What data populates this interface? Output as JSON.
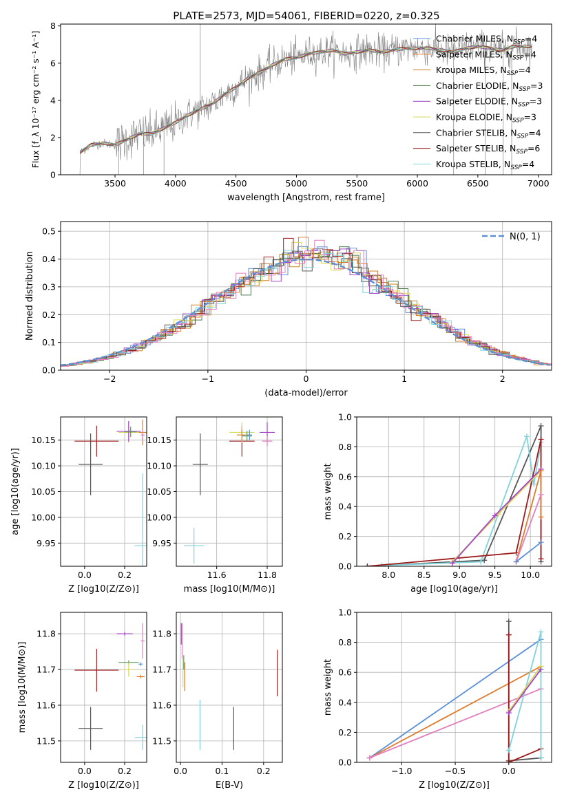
{
  "figure_title": "PLATE=2573, MJD=54061, FIBERID=0220, z=0.325",
  "colors": {
    "Chabrier MILES": "#5b8fd6",
    "Salpeter MILES": "#e07b2c",
    "Kroupa MILES": "#c9832a",
    "Chabrier ELODIE": "#4e7a4e",
    "Salpeter ELODIE": "#a442c7",
    "Kroupa ELODIE": "#d9d95a",
    "Chabrier STELIB": "#555555",
    "Salpeter STELIB": "#a01c1c",
    "Kroupa STELIB": "#7fd3db",
    "Pink": "#e27fbf",
    "Green": "#5a9a5a",
    "Orange": "#e07b2c",
    "Blue": "#5b8fd6",
    "Data": "#808080",
    "Normal": "#5b8fd6"
  },
  "chart_data": [
    {
      "id": "spectrum",
      "type": "line",
      "title": "PLATE=2573, MJD=54061, FIBERID=0220, z=0.325",
      "xlabel": "wavelength [Angstrom, rest frame]",
      "ylabel": "Flux [f_λ 10^-17 erg cm^-2 s^-1 A^-1]",
      "xlim": [
        3050,
        7110
      ],
      "ylim": [
        0,
        8.1
      ],
      "xticks": [
        3500,
        4000,
        4500,
        5000,
        5500,
        6000,
        6500,
        7000
      ],
      "yticks": [
        0,
        2,
        4,
        6,
        8
      ],
      "grid": false,
      "legend_position": "right",
      "legend": [
        {
          "name": "Chabrier MILES",
          "nssp": "4"
        },
        {
          "name": "Salpeter MILES",
          "nssp": "4"
        },
        {
          "name": "Kroupa MILES",
          "nssp": "4"
        },
        {
          "name": "Chabrier ELODIE",
          "nssp": "3"
        },
        {
          "name": "Salpeter ELODIE",
          "nssp": "3"
        },
        {
          "name": "Kroupa ELODIE",
          "nssp": "3"
        },
        {
          "name": "Chabrier STELIB",
          "nssp": "4"
        },
        {
          "name": "Salpeter STELIB",
          "nssp": "6"
        },
        {
          "name": "Kroupa STELIB",
          "nssp": "4"
        }
      ],
      "continuum": [
        [
          3210,
          1.2
        ],
        [
          3300,
          1.6
        ],
        [
          3400,
          1.7
        ],
        [
          3500,
          1.6
        ],
        [
          3600,
          1.9
        ],
        [
          3700,
          2.2
        ],
        [
          3800,
          2.2
        ],
        [
          3900,
          2.5
        ],
        [
          4000,
          2.8
        ],
        [
          4100,
          3.2
        ],
        [
          4200,
          3.5
        ],
        [
          4300,
          3.8
        ],
        [
          4400,
          4.3
        ],
        [
          4500,
          4.7
        ],
        [
          4600,
          5.2
        ],
        [
          4700,
          5.5
        ],
        [
          4800,
          5.9
        ],
        [
          4900,
          6.2
        ],
        [
          5000,
          6.3
        ],
        [
          5100,
          6.5
        ],
        [
          5200,
          6.6
        ],
        [
          5300,
          6.7
        ],
        [
          5400,
          6.5
        ],
        [
          5500,
          6.6
        ],
        [
          5600,
          6.7
        ],
        [
          5700,
          6.6
        ],
        [
          5800,
          6.7
        ],
        [
          5900,
          6.8
        ],
        [
          6000,
          6.8
        ],
        [
          6100,
          6.8
        ],
        [
          6200,
          6.7
        ],
        [
          6300,
          6.6
        ],
        [
          6400,
          6.8
        ],
        [
          6500,
          6.9
        ],
        [
          6600,
          6.8
        ],
        [
          6700,
          6.7
        ],
        [
          6800,
          6.9
        ],
        [
          6900,
          6.9
        ],
        [
          6950,
          6.9
        ]
      ]
    },
    {
      "id": "residuals",
      "type": "line",
      "xlabel": "(data-model)/error",
      "ylabel": "Normed distribution",
      "xlim": [
        -2.5,
        2.5
      ],
      "ylim": [
        0,
        0.535
      ],
      "xticks": [
        -2,
        -1,
        0,
        1,
        2
      ],
      "yticks": [
        0.0,
        0.1,
        0.2,
        0.3,
        0.4,
        0.5
      ],
      "grid": true,
      "legend_position": "top-right",
      "normal_label": "N(0, 1)"
    },
    {
      "id": "age_vs_Z",
      "type": "scatter",
      "xlabel": "Z [log10(Z/Z⊙)]",
      "ylabel": "age [log10(age/yr)]",
      "xlim": [
        -0.12,
        0.31
      ],
      "ylim": [
        9.905,
        10.195
      ],
      "xticks": [
        0.0,
        0.2
      ],
      "yticks": [
        9.95,
        10.0,
        10.05,
        10.1,
        10.15
      ],
      "grid": true,
      "points": [
        {
          "c": "Salpeter STELIB",
          "x": 0.06,
          "y": 10.148,
          "dx": 0.11,
          "dy": 0.03
        },
        {
          "c": "Chabrier STELIB",
          "x": 0.03,
          "y": 10.103,
          "dx": 0.06,
          "dy": 0.06
        },
        {
          "c": "Kroupa STELIB",
          "x": 0.29,
          "y": 9.945,
          "dx": 0.04,
          "dy": 0.14
        },
        {
          "c": "Kroupa ELODIE",
          "x": 0.22,
          "y": 10.165,
          "dx": 0.05,
          "dy": 0.02
        },
        {
          "c": "Salpeter ELODIE",
          "x": 0.22,
          "y": 10.167,
          "dx": 0.06,
          "dy": 0.02
        },
        {
          "c": "Salpeter MILES",
          "x": 0.29,
          "y": 10.165,
          "dx": 0.02,
          "dy": 0.025
        },
        {
          "c": "Pink",
          "x": 0.29,
          "y": 10.16,
          "dx": 0.01,
          "dy": 0.01
        },
        {
          "c": "Green",
          "x": 0.23,
          "y": 10.166,
          "dx": 0.03,
          "dy": 0.01
        }
      ]
    },
    {
      "id": "age_vs_mass",
      "type": "scatter",
      "xlabel": "mass [log10(M/M⊙)]",
      "ylabel": "",
      "xlim": [
        11.44,
        11.86
      ],
      "ylim": [
        9.905,
        10.195
      ],
      "xticks": [
        11.6,
        11.8
      ],
      "yticks": [
        9.95,
        10.0,
        10.05,
        10.1,
        10.15
      ],
      "grid": true,
      "points": [
        {
          "c": "Chabrier STELIB",
          "x": 11.535,
          "y": 10.103,
          "dx": 0.03,
          "dy": 0.06
        },
        {
          "c": "Kroupa STELIB",
          "x": 11.51,
          "y": 9.945,
          "dx": 0.04,
          "dy": 0.035
        },
        {
          "c": "Salpeter STELIB",
          "x": 11.7,
          "y": 10.148,
          "dx": 0.05,
          "dy": 0.03
        },
        {
          "c": "Kroupa ELODIE",
          "x": 11.7,
          "y": 10.165,
          "dx": 0.05,
          "dy": 0.02
        },
        {
          "c": "Salpeter ELODIE",
          "x": 11.8,
          "y": 10.165,
          "dx": 0.03,
          "dy": 0.02
        },
        {
          "c": "Pink",
          "x": 11.8,
          "y": 10.148,
          "dx": 0.02,
          "dy": 0.01
        },
        {
          "c": "Green",
          "x": 11.72,
          "y": 10.158,
          "dx": 0.02,
          "dy": 0.01
        },
        {
          "c": "Salpeter MILES",
          "x": 11.7,
          "y": 10.16,
          "dx": 0.02,
          "dy": 0.01
        },
        {
          "c": "Chabrier MILES",
          "x": 11.73,
          "y": 10.16,
          "dx": 0.01,
          "dy": 0.01
        }
      ]
    },
    {
      "id": "mass_vs_Z",
      "type": "scatter",
      "xlabel": "Z [log10(Z/Z⊙)]",
      "ylabel": "mass [log10(M/M⊙)]",
      "xlim": [
        -0.12,
        0.31
      ],
      "ylim": [
        11.44,
        11.86
      ],
      "xticks": [
        0.0,
        0.2
      ],
      "yticks": [
        11.5,
        11.6,
        11.7,
        11.8
      ],
      "grid": true,
      "points": [
        {
          "c": "Salpeter STELIB",
          "x": 0.06,
          "y": 11.698,
          "dx": 0.11,
          "dy": 0.06
        },
        {
          "c": "Chabrier STELIB",
          "x": 0.03,
          "y": 11.535,
          "dx": 0.06,
          "dy": 0.06
        },
        {
          "c": "Kroupa STELIB",
          "x": 0.29,
          "y": 11.51,
          "dx": 0.04,
          "dy": 0.035
        },
        {
          "c": "Salpeter ELODIE",
          "x": 0.2,
          "y": 11.8,
          "dx": 0.04,
          "dy": 0.005
        },
        {
          "c": "Pink",
          "x": 0.29,
          "y": 11.78,
          "dx": 0.01,
          "dy": 0.05
        },
        {
          "c": "Green",
          "x": 0.22,
          "y": 11.72,
          "dx": 0.05,
          "dy": 0.005
        },
        {
          "c": "Kroupa ELODIE",
          "x": 0.22,
          "y": 11.7,
          "dx": 0.03,
          "dy": 0.02
        },
        {
          "c": "Salpeter MILES",
          "x": 0.28,
          "y": 11.68,
          "dx": 0.02,
          "dy": 0.005
        },
        {
          "c": "Chabrier MILES",
          "x": 0.28,
          "y": 11.715,
          "dx": 0.01,
          "dy": 0.005
        }
      ]
    },
    {
      "id": "mass_vs_EBV",
      "type": "scatter",
      "xlabel": "E(B-V)",
      "ylabel": "",
      "xlim": [
        -0.01,
        0.245
      ],
      "ylim": [
        11.44,
        11.86
      ],
      "xticks": [
        0.0,
        0.1,
        0.2
      ],
      "yticks": [
        11.5,
        11.6,
        11.7,
        11.8
      ],
      "grid": true,
      "points": [
        {
          "c": "Salpeter STELIB",
          "x": 0.233,
          "y": 11.69,
          "dx": 0.0,
          "dy": 0.065
        },
        {
          "c": "Chabrier STELIB",
          "x": 0.128,
          "y": 11.535,
          "dx": 0.0,
          "dy": 0.06
        },
        {
          "c": "Kroupa STELIB",
          "x": 0.047,
          "y": 11.545,
          "dx": 0.0,
          "dy": 0.07
        },
        {
          "c": "Pink",
          "x": 0.004,
          "y": 11.78,
          "dx": 0.0,
          "dy": 0.05
        },
        {
          "c": "Salpeter ELODIE",
          "x": 0.002,
          "y": 11.8,
          "dx": 0.0,
          "dy": 0.03
        },
        {
          "c": "Kroupa ELODIE",
          "x": 0.006,
          "y": 11.69,
          "dx": 0.0,
          "dy": 0.04
        },
        {
          "c": "Salpeter MILES",
          "x": 0.01,
          "y": 11.68,
          "dx": 0.0,
          "dy": 0.04
        },
        {
          "c": "Green",
          "x": 0.008,
          "y": 11.72,
          "dx": 0.0,
          "dy": 0.02
        }
      ]
    },
    {
      "id": "weight_vs_age",
      "type": "line",
      "xlabel": "age [log10(age/yr)]",
      "ylabel": "mass weight",
      "xlim": [
        7.55,
        10.3
      ],
      "ylim": [
        0,
        1.0
      ],
      "xticks": [
        8.0,
        8.5,
        9.0,
        9.5,
        10.0
      ],
      "yticks": [
        0.0,
        0.2,
        0.4,
        0.6,
        0.8,
        1.0
      ],
      "grid": true,
      "series": [
        {
          "c": "Chabrier STELIB",
          "x": [
            7.7,
            9.35,
            10.15,
            10.15
          ],
          "y": [
            0.0,
            0.04,
            0.94,
            0.03
          ]
        },
        {
          "c": "Kroupa STELIB",
          "x": [
            7.9,
            9.3,
            9.95,
            10.05,
            10.15
          ],
          "y": [
            0.005,
            0.03,
            0.87,
            0.55,
            0.83
          ]
        },
        {
          "c": "Salpeter STELIB",
          "x": [
            7.7,
            9.8,
            10.15,
            10.15
          ],
          "y": [
            0.0,
            0.09,
            0.85,
            0.05
          ]
        },
        {
          "c": "Kroupa ELODIE",
          "x": [
            8.9,
            9.55,
            10.15
          ],
          "y": [
            0.03,
            0.35,
            0.64
          ]
        },
        {
          "c": "Salpeter ELODIE",
          "x": [
            8.9,
            9.5,
            10.15
          ],
          "y": [
            0.02,
            0.34,
            0.65
          ]
        },
        {
          "c": "Salpeter MILES",
          "x": [
            9.8,
            10.15,
            10.15
          ],
          "y": [
            0.03,
            0.64,
            0.33
          ]
        },
        {
          "c": "Pink",
          "x": [
            9.8,
            10.15
          ],
          "y": [
            0.03,
            0.48
          ]
        },
        {
          "c": "Blue",
          "x": [
            9.8,
            10.15
          ],
          "y": [
            0.03,
            0.16
          ]
        }
      ]
    },
    {
      "id": "weight_vs_Z",
      "type": "line",
      "xlabel": "Z [log10(Z/Z⊙)]",
      "ylabel": "mass weight",
      "xlim": [
        -1.42,
        0.4
      ],
      "ylim": [
        0,
        1.0
      ],
      "xticks": [
        -1.0,
        -0.5,
        0.0
      ],
      "yticks": [
        0.0,
        0.2,
        0.4,
        0.6,
        0.8,
        1.0
      ],
      "grid": true,
      "series": [
        {
          "c": "Blue",
          "x": [
            -1.3,
            0.3
          ],
          "y": [
            0.03,
            0.82
          ]
        },
        {
          "c": "Salpeter MILES",
          "x": [
            -1.3,
            0.3
          ],
          "y": [
            0.03,
            0.64
          ]
        },
        {
          "c": "Pink",
          "x": [
            -1.3,
            0.3
          ],
          "y": [
            0.03,
            0.49
          ]
        },
        {
          "c": "Chabrier STELIB",
          "x": [
            0.0,
            0.0,
            0.3
          ],
          "y": [
            0.94,
            0.01,
            0.03
          ]
        },
        {
          "c": "Salpeter STELIB",
          "x": [
            0.0,
            0.0,
            0.3
          ],
          "y": [
            0.85,
            0.0,
            0.09
          ]
        },
        {
          "c": "Kroupa STELIB",
          "x": [
            0.0,
            0.3,
            0.3
          ],
          "y": [
            0.08,
            0.87,
            0.03
          ]
        },
        {
          "c": "Kroupa ELODIE",
          "x": [
            0.0,
            0.3
          ],
          "y": [
            0.34,
            0.64
          ]
        },
        {
          "c": "Salpeter ELODIE",
          "x": [
            0.0,
            0.3
          ],
          "y": [
            0.33,
            0.62
          ]
        }
      ]
    }
  ]
}
